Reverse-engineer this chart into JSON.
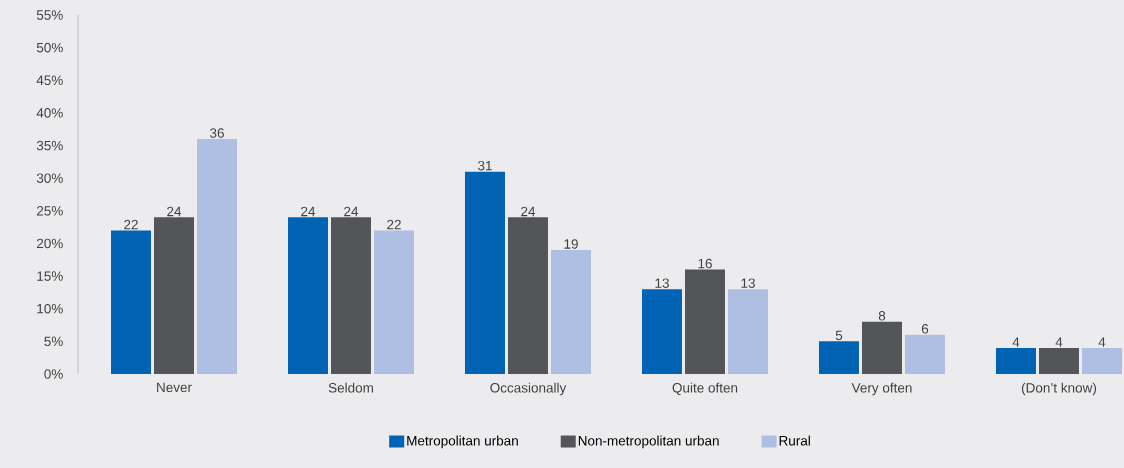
{
  "chart_data": {
    "type": "bar",
    "categories": [
      "Never",
      "Seldom",
      "Occasionally",
      "Quite often",
      "Very often",
      "(Don’t know)"
    ],
    "series": [
      {
        "name": "Metropolitan urban",
        "color": "#0063b3",
        "values": [
          22,
          24,
          31,
          13,
          5,
          4
        ]
      },
      {
        "name": "Non-metropolitan urban",
        "color": "#545559",
        "values": [
          24,
          24,
          24,
          16,
          8,
          4
        ]
      },
      {
        "name": "Rural",
        "color": "#aebfe3",
        "values": [
          36,
          22,
          19,
          13,
          6,
          4
        ]
      }
    ],
    "ylim": [
      0,
      55
    ],
    "yticks": [
      {
        "value": 0,
        "label": "0%"
      },
      {
        "value": 5,
        "label": "5%"
      },
      {
        "value": 10,
        "label": "10%"
      },
      {
        "value": 15,
        "label": "15%"
      },
      {
        "value": 20,
        "label": "20%"
      },
      {
        "value": 25,
        "label": "25%"
      },
      {
        "value": 30,
        "label": "30%"
      },
      {
        "value": 35,
        "label": "35%"
      },
      {
        "value": 40,
        "label": "40%"
      },
      {
        "value": 45,
        "label": "45%"
      },
      {
        "value": 50,
        "label": "50%"
      },
      {
        "value": 55,
        "label": "55%"
      }
    ],
    "data_labels": true,
    "grid": false,
    "legend": "bottom"
  }
}
